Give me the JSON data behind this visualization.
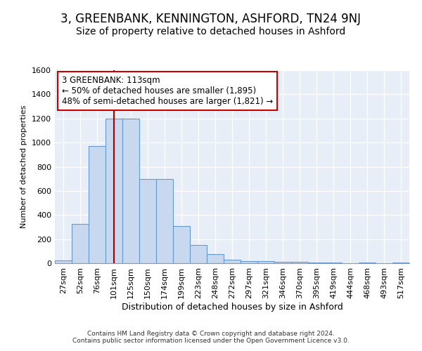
{
  "title": "3, GREENBANK, KENNINGTON, ASHFORD, TN24 9NJ",
  "subtitle": "Size of property relative to detached houses in Ashford",
  "xlabel": "Distribution of detached houses by size in Ashford",
  "ylabel": "Number of detached properties",
  "categories": [
    "27sqm",
    "52sqm",
    "76sqm",
    "101sqm",
    "125sqm",
    "150sqm",
    "174sqm",
    "199sqm",
    "223sqm",
    "248sqm",
    "272sqm",
    "297sqm",
    "321sqm",
    "346sqm",
    "370sqm",
    "395sqm",
    "419sqm",
    "444sqm",
    "468sqm",
    "493sqm",
    "517sqm"
  ],
  "values": [
    25,
    325,
    970,
    1200,
    1200,
    700,
    700,
    310,
    150,
    75,
    30,
    20,
    15,
    10,
    10,
    5,
    5,
    0,
    5,
    0,
    5
  ],
  "bar_color": "#c8d8ee",
  "bar_edge_color": "#6699cc",
  "vline_x_index": 3,
  "vline_color": "#aa0000",
  "annotation_text": "3 GREENBANK: 113sqm\n← 50% of detached houses are smaller (1,895)\n48% of semi-detached houses are larger (1,821) →",
  "annotation_box_color": "#ffffff",
  "annotation_box_edge_color": "#cc0000",
  "ylim": [
    0,
    1600
  ],
  "yticks": [
    0,
    200,
    400,
    600,
    800,
    1000,
    1200,
    1400,
    1600
  ],
  "footer_text": "Contains HM Land Registry data © Crown copyright and database right 2024.\nContains public sector information licensed under the Open Government Licence v3.0.",
  "bg_color": "#e8eef8",
  "plot_bg_color": "#e8eef8",
  "title_fontsize": 12,
  "subtitle_fontsize": 10,
  "tick_fontsize": 8,
  "ylabel_fontsize": 8,
  "xlabel_fontsize": 9
}
